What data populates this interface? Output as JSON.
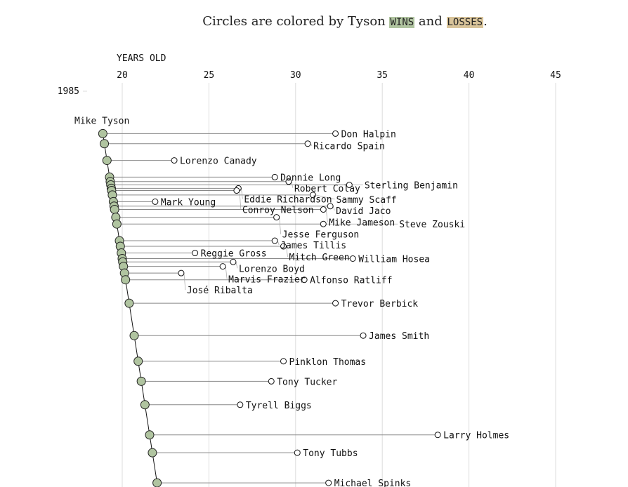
{
  "title": {
    "prefix": "Circles are colored by Tyson ",
    "wins": "WINS",
    "middle": " and ",
    "losses": "LOSSES",
    "suffix": "."
  },
  "colors": {
    "win": "#b0c4a0",
    "loss": "#d9c49a",
    "opponent": "#ffffff",
    "grid": "#dddddd",
    "link": "#888888"
  },
  "chart_data": {
    "type": "scatter",
    "xlabel": "YEARS OLD",
    "xticks": [
      20,
      25,
      30,
      35,
      40,
      45
    ],
    "xlim": [
      18,
      46
    ],
    "yticks": [
      1985
    ],
    "grid": true,
    "fighter_label": "Mike Tyson",
    "fighter_birth_year": 1966.5,
    "fights": [
      {
        "opponent": "Don Halpin",
        "date": 1985.38,
        "opponent_age": 32.3,
        "result": "win"
      },
      {
        "opponent": "Ricardo Spain",
        "date": 1985.47,
        "opponent_age": 30.7,
        "result": "win"
      },
      {
        "opponent": "Lorenzo Canady",
        "date": 1985.62,
        "opponent_age": 23.0,
        "result": "win"
      },
      {
        "opponent": "Donnie Long",
        "date": 1985.77,
        "opponent_age": 28.8,
        "result": "win"
      },
      {
        "opponent": "Robert Colay",
        "date": 1985.81,
        "opponent_age": 29.6,
        "result": "win"
      },
      {
        "opponent": "Sterling Benjamin",
        "date": 1985.84,
        "opponent_age": 33.1,
        "result": "win"
      },
      {
        "opponent": "Eddie Richardson",
        "date": 1985.87,
        "opponent_age": 26.7,
        "result": "win"
      },
      {
        "opponent": "Conroy Nelson",
        "date": 1985.89,
        "opponent_age": 26.6,
        "result": "win"
      },
      {
        "opponent": "Sammy Scaff",
        "date": 1985.93,
        "opponent_age": 31.0,
        "result": "win"
      },
      {
        "opponent": "Mark Young",
        "date": 1985.99,
        "opponent_age": 21.9,
        "result": "win"
      },
      {
        "opponent": "David Jaco",
        "date": 1986.03,
        "opponent_age": 32.0,
        "result": "win"
      },
      {
        "opponent": "Mike Jameson",
        "date": 1986.06,
        "opponent_age": 31.6,
        "result": "win"
      },
      {
        "opponent": "Jesse Ferguson",
        "date": 1986.13,
        "opponent_age": 28.9,
        "result": "win"
      },
      {
        "opponent": "Steve Zouski",
        "date": 1986.19,
        "opponent_age": 31.6,
        "result": "win"
      },
      {
        "opponent": "James Tillis",
        "date": 1986.34,
        "opponent_age": 28.8,
        "result": "win"
      },
      {
        "opponent": "Mitch Green",
        "date": 1986.39,
        "opponent_age": 29.3,
        "result": "win"
      },
      {
        "opponent": "Reggie Gross",
        "date": 1986.45,
        "opponent_age": 24.2,
        "result": "win"
      },
      {
        "opponent": "William Hosea",
        "date": 1986.5,
        "opponent_age": 33.3,
        "result": "win"
      },
      {
        "opponent": "Lorenzo Boyd",
        "date": 1986.53,
        "opponent_age": 26.4,
        "result": "win"
      },
      {
        "opponent": "Marvis Frazier",
        "date": 1986.57,
        "opponent_age": 25.8,
        "result": "win"
      },
      {
        "opponent": "José Ribalta",
        "date": 1986.63,
        "opponent_age": 23.4,
        "result": "win"
      },
      {
        "opponent": "Alfonso Ratliff",
        "date": 1986.69,
        "opponent_age": 30.5,
        "result": "win"
      },
      {
        "opponent": "Trevor Berbick",
        "date": 1986.9,
        "opponent_age": 32.3,
        "result": "win"
      },
      {
        "opponent": "James Smith",
        "date": 1987.19,
        "opponent_age": 33.9,
        "result": "win"
      },
      {
        "opponent": "Pinklon Thomas",
        "date": 1987.42,
        "opponent_age": 29.3,
        "result": "win"
      },
      {
        "opponent": "Tony Tucker",
        "date": 1987.6,
        "opponent_age": 28.6,
        "result": "win"
      },
      {
        "opponent": "Tyrell Biggs",
        "date": 1987.81,
        "opponent_age": 26.8,
        "result": "win"
      },
      {
        "opponent": "Larry Holmes",
        "date": 1988.08,
        "opponent_age": 38.2,
        "result": "win"
      },
      {
        "opponent": "Tony Tubbs",
        "date": 1988.24,
        "opponent_age": 30.1,
        "result": "win"
      },
      {
        "opponent": "Michael Spinks",
        "date": 1988.51,
        "opponent_age": 31.9,
        "result": "win"
      }
    ]
  }
}
